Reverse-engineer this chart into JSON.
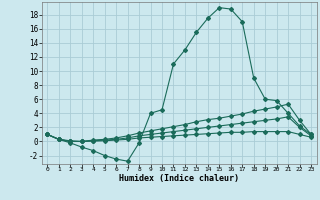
{
  "xlabel": "Humidex (Indice chaleur)",
  "bg_color": "#cce8ee",
  "line_color": "#1a6b5a",
  "grid_color": "#aaccd5",
  "xlim": [
    -0.5,
    23.5
  ],
  "ylim": [
    -3.2,
    19.8
  ],
  "xticks": [
    0,
    1,
    2,
    3,
    4,
    5,
    6,
    7,
    8,
    9,
    10,
    11,
    12,
    13,
    14,
    15,
    16,
    17,
    18,
    19,
    20,
    21,
    22,
    23
  ],
  "yticks": [
    -2,
    0,
    2,
    4,
    6,
    8,
    10,
    12,
    14,
    16,
    18
  ],
  "line1_x": [
    0,
    1,
    2,
    3,
    4,
    5,
    6,
    7,
    8,
    9,
    10,
    11,
    12,
    13,
    14,
    15,
    16,
    17,
    18,
    19,
    20,
    21,
    22,
    23
  ],
  "line1_y": [
    1.0,
    0.3,
    -0.2,
    -0.8,
    -1.3,
    -2.0,
    -2.5,
    -2.8,
    -0.2,
    4.0,
    4.5,
    11.0,
    13.0,
    15.5,
    17.5,
    19.0,
    18.8,
    17.0,
    9.0,
    6.0,
    5.8,
    4.0,
    2.2,
    1.0
  ],
  "line2_x": [
    0,
    1,
    2,
    3,
    4,
    5,
    6,
    7,
    8,
    9,
    10,
    11,
    12,
    13,
    14,
    15,
    16,
    17,
    18,
    19,
    20,
    21,
    22,
    23
  ],
  "line2_y": [
    1.0,
    0.3,
    0.1,
    0.0,
    0.2,
    0.3,
    0.5,
    0.8,
    1.2,
    1.5,
    1.8,
    2.1,
    2.4,
    2.8,
    3.1,
    3.3,
    3.6,
    3.9,
    4.3,
    4.6,
    4.9,
    5.3,
    3.0,
    1.0
  ],
  "line3_x": [
    0,
    1,
    2,
    3,
    4,
    5,
    6,
    7,
    8,
    9,
    10,
    11,
    12,
    13,
    14,
    15,
    16,
    17,
    18,
    19,
    20,
    21,
    22,
    23
  ],
  "line3_y": [
    1.0,
    0.3,
    0.0,
    0.0,
    0.1,
    0.2,
    0.3,
    0.5,
    0.8,
    1.0,
    1.2,
    1.4,
    1.6,
    1.8,
    2.0,
    2.2,
    2.4,
    2.6,
    2.8,
    3.0,
    3.2,
    3.5,
    2.0,
    0.8
  ],
  "line4_x": [
    0,
    1,
    2,
    3,
    4,
    5,
    6,
    7,
    8,
    9,
    10,
    11,
    12,
    13,
    14,
    15,
    16,
    17,
    18,
    19,
    20,
    21,
    22,
    23
  ],
  "line4_y": [
    1.0,
    0.3,
    0.0,
    0.0,
    0.05,
    0.1,
    0.2,
    0.3,
    0.5,
    0.6,
    0.7,
    0.8,
    0.9,
    1.0,
    1.1,
    1.2,
    1.3,
    1.3,
    1.4,
    1.4,
    1.4,
    1.4,
    1.0,
    0.6
  ]
}
